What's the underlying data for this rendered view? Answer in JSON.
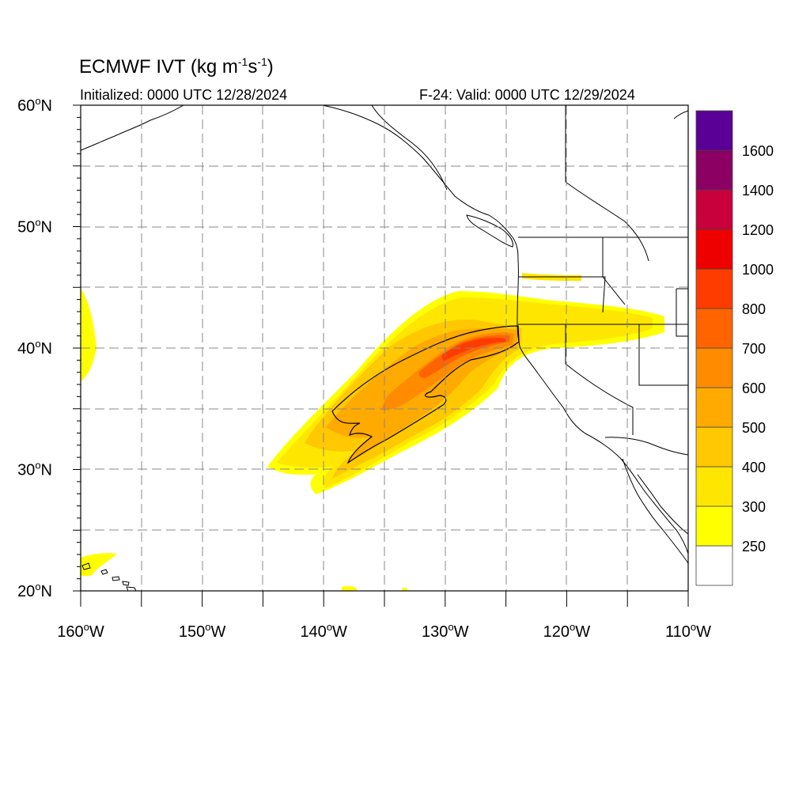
{
  "title": {
    "prefix": "ECMWF IVT (kg m",
    "exp1": "-1",
    "mid": "s",
    "exp2": "-1",
    "suffix": ")"
  },
  "subtitle_left": "Initialized: 0000 UTC 12/28/2024",
  "subtitle_right": "F-24: Valid: 0000 UTC 12/29/2024",
  "lat_labels": [
    {
      "deg": 60,
      "text": "60",
      "hemi": "N"
    },
    {
      "deg": 50,
      "text": "50",
      "hemi": "N"
    },
    {
      "deg": 40,
      "text": "40",
      "hemi": "N"
    },
    {
      "deg": 30,
      "text": "30",
      "hemi": "N"
    },
    {
      "deg": 20,
      "text": "20",
      "hemi": "N"
    }
  ],
  "lon_labels": [
    {
      "deg": -160,
      "text": "160",
      "hemi": "W"
    },
    {
      "deg": -150,
      "text": "150",
      "hemi": "W"
    },
    {
      "deg": -140,
      "text": "140",
      "hemi": "W"
    },
    {
      "deg": -130,
      "text": "130",
      "hemi": "W"
    },
    {
      "deg": -120,
      "text": "120",
      "hemi": "W"
    },
    {
      "deg": -110,
      "text": "110",
      "hemi": "W"
    }
  ],
  "colorbar": {
    "colors": [
      "#FFFFFF",
      "#FFFF00",
      "#FFE600",
      "#FFC800",
      "#FFAA00",
      "#FF8C00",
      "#FF6400",
      "#FF3C00",
      "#EE0000",
      "#C8003C",
      "#8C0064",
      "#5A0096"
    ],
    "labels": [
      "250",
      "300",
      "400",
      "500",
      "600",
      "700",
      "800",
      "1000",
      "1200",
      "1400",
      "1600"
    ]
  },
  "map": {
    "lon_range": [
      -160,
      -110
    ],
    "lat_range": [
      20,
      60
    ],
    "gridline_step_deg": 5,
    "colors": {
      "coast": "#000000",
      "grid": "#888888",
      "border": "#000000"
    }
  }
}
